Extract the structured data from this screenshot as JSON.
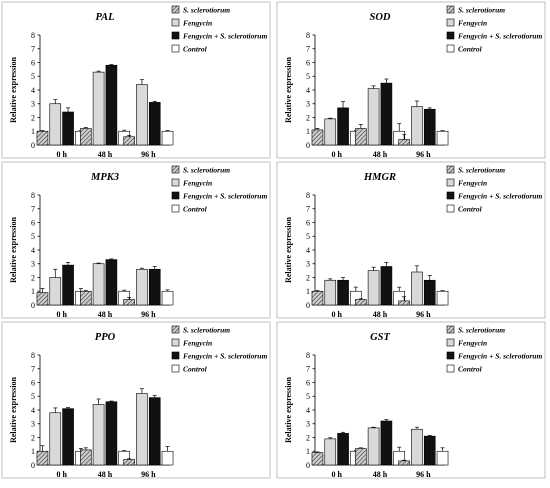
{
  "legend_labels": [
    "S. sclerotiorum",
    "Fengycin",
    "Fengycin + S. sclerotiorum",
    "Control"
  ],
  "series_colors": [
    "hatch-gray",
    "#d9d9d9",
    "#111111",
    "#ffffff"
  ],
  "chart_data": [
    {
      "type": "bar",
      "title": "PAL",
      "ylabel": "Relative expression",
      "categories": [
        "0 h",
        "48 h",
        "96 h"
      ],
      "ylim": [
        0,
        8
      ],
      "yticks": [
        0,
        1,
        2,
        3,
        4,
        5,
        6,
        7,
        8
      ],
      "series": [
        {
          "name": "S. sclerotiorum",
          "values": [
            1.0,
            1.2,
            0.6
          ],
          "errors": [
            0.05,
            0.08,
            0.1
          ]
        },
        {
          "name": "Fengycin",
          "values": [
            3.0,
            5.3,
            4.4
          ],
          "errors": [
            0.3,
            0.07,
            0.35
          ]
        },
        {
          "name": "Fengycin + S. sclerotiorum",
          "values": [
            2.4,
            5.8,
            3.1
          ],
          "errors": [
            0.3,
            0.05,
            0.08
          ]
        },
        {
          "name": "Control",
          "values": [
            1.0,
            1.0,
            1.0
          ],
          "errors": [
            0.05,
            0.08,
            0.05
          ]
        }
      ]
    },
    {
      "type": "bar",
      "title": "SOD",
      "ylabel": "Relative expression",
      "categories": [
        "0 h",
        "48 h",
        "96 h"
      ],
      "ylim": [
        0,
        8
      ],
      "yticks": [
        0,
        1,
        2,
        3,
        4,
        5,
        6,
        7,
        8
      ],
      "series": [
        {
          "name": "S. sclerotiorum",
          "values": [
            1.1,
            1.2,
            0.4
          ],
          "errors": [
            0.1,
            0.3,
            0.35
          ]
        },
        {
          "name": "Fengycin",
          "values": [
            1.9,
            4.1,
            2.8
          ],
          "errors": [
            0.05,
            0.2,
            0.4
          ]
        },
        {
          "name": "Fengycin + S. sclerotiorum",
          "values": [
            2.7,
            4.5,
            2.6
          ],
          "errors": [
            0.45,
            0.3,
            0.1
          ]
        },
        {
          "name": "Control",
          "values": [
            1.0,
            1.0,
            1.0
          ],
          "errors": [
            0.05,
            0.55,
            0.05
          ]
        }
      ]
    },
    {
      "type": "bar",
      "title": "MPK3",
      "ylabel": "Relative expression",
      "categories": [
        "0 h",
        "48 h",
        "96 h"
      ],
      "ylim": [
        0,
        8
      ],
      "yticks": [
        0,
        1,
        2,
        3,
        4,
        5,
        6,
        7,
        8
      ],
      "series": [
        {
          "name": "S. sclerotiorum",
          "values": [
            0.9,
            1.0,
            0.4
          ],
          "errors": [
            0.3,
            0.05,
            0.15
          ]
        },
        {
          "name": "Fengycin",
          "values": [
            2.0,
            3.0,
            2.6
          ],
          "errors": [
            0.6,
            0.05,
            0.08
          ]
        },
        {
          "name": "Fengycin + S. sclerotiorum",
          "values": [
            2.9,
            3.3,
            2.6
          ],
          "errors": [
            0.2,
            0.05,
            0.2
          ]
        },
        {
          "name": "Control",
          "values": [
            1.0,
            1.0,
            1.0
          ],
          "errors": [
            0.2,
            0.08,
            0.1
          ]
        }
      ]
    },
    {
      "type": "bar",
      "title": "HMGR",
      "ylabel": "Relative expression",
      "categories": [
        "0 h",
        "48 h",
        "96 h"
      ],
      "ylim": [
        0,
        8
      ],
      "yticks": [
        0,
        1,
        2,
        3,
        4,
        5,
        6,
        7,
        8
      ],
      "series": [
        {
          "name": "S. sclerotiorum",
          "values": [
            1.0,
            0.4,
            0.3
          ],
          "errors": [
            0.05,
            0.05,
            0.3
          ]
        },
        {
          "name": "Fengycin",
          "values": [
            1.8,
            2.5,
            2.4
          ],
          "errors": [
            0.1,
            0.25,
            0.45
          ]
        },
        {
          "name": "Fengycin + S. sclerotiorum",
          "values": [
            1.8,
            2.8,
            1.8
          ],
          "errors": [
            0.2,
            0.3,
            0.35
          ]
        },
        {
          "name": "Control",
          "values": [
            1.0,
            1.0,
            1.0
          ],
          "errors": [
            0.3,
            0.3,
            0.05
          ]
        }
      ]
    },
    {
      "type": "bar",
      "title": "PPO",
      "ylabel": "Relative expression",
      "categories": [
        "0 h",
        "48 h",
        "96 h"
      ],
      "ylim": [
        0,
        8
      ],
      "yticks": [
        0,
        1,
        2,
        3,
        4,
        5,
        6,
        7,
        8
      ],
      "series": [
        {
          "name": "S. sclerotiorum",
          "values": [
            1.0,
            1.1,
            0.4
          ],
          "errors": [
            0.4,
            0.15,
            0.05
          ]
        },
        {
          "name": "Fengycin",
          "values": [
            3.8,
            4.4,
            5.2
          ],
          "errors": [
            0.35,
            0.4,
            0.35
          ]
        },
        {
          "name": "Fengycin + S. sclerotiorum",
          "values": [
            4.1,
            4.6,
            4.9
          ],
          "errors": [
            0.08,
            0.05,
            0.15
          ]
        },
        {
          "name": "Control",
          "values": [
            1.0,
            1.0,
            1.0
          ],
          "errors": [
            0.2,
            0.05,
            0.35
          ]
        }
      ]
    },
    {
      "type": "bar",
      "title": "GST",
      "ylabel": "Relative expression",
      "categories": [
        "0 h",
        "48 h",
        "96 h"
      ],
      "ylim": [
        0,
        8
      ],
      "yticks": [
        0,
        1,
        2,
        3,
        4,
        5,
        6,
        7,
        8
      ],
      "series": [
        {
          "name": "S. sclerotiorum",
          "values": [
            0.9,
            1.2,
            0.3
          ],
          "errors": [
            0.05,
            0.05,
            0.05
          ]
        },
        {
          "name": "Fengycin",
          "values": [
            1.9,
            2.7,
            2.6
          ],
          "errors": [
            0.08,
            0.05,
            0.15
          ]
        },
        {
          "name": "Fengycin + S. sclerotiorum",
          "values": [
            2.3,
            3.2,
            2.1
          ],
          "errors": [
            0.08,
            0.1,
            0.05
          ]
        },
        {
          "name": "Control",
          "values": [
            1.0,
            1.0,
            1.0
          ],
          "errors": [
            0.05,
            0.3,
            0.25
          ]
        }
      ]
    }
  ]
}
